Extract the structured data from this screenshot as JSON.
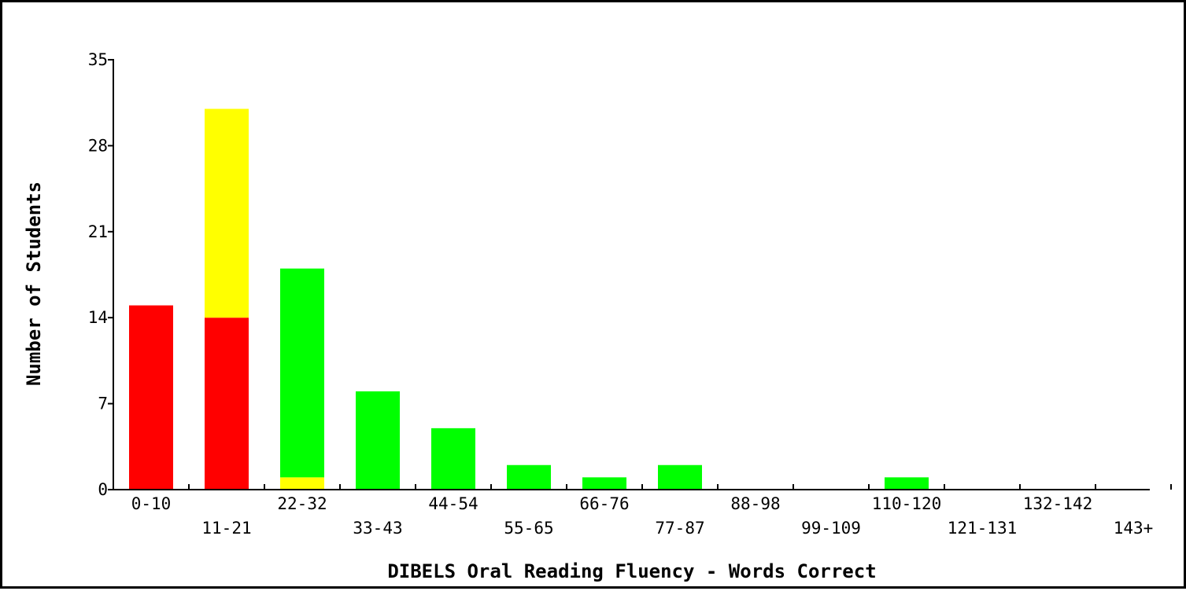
{
  "chart_data": {
    "type": "bar",
    "stacked": true,
    "xlabel": "DIBELS Oral Reading Fluency - Words Correct",
    "ylabel": "Number of Students",
    "ylim": [
      0,
      35
    ],
    "yticks": [
      "0",
      "7",
      "14",
      "21",
      "28",
      "35"
    ],
    "categories": [
      "0-10",
      "11-21",
      "22-32",
      "33-43",
      "44-54",
      "55-65",
      "66-76",
      "77-87",
      "88-98",
      "99-109",
      "110-120",
      "121-131",
      "132-142",
      "143+"
    ],
    "series": [
      {
        "color": "#ff0000",
        "values": [
          15,
          14,
          0,
          0,
          0,
          0,
          0,
          0,
          0,
          0,
          0,
          0,
          0,
          0
        ]
      },
      {
        "color": "#ffff00",
        "values": [
          0,
          17,
          1,
          0,
          0,
          0,
          0,
          0,
          0,
          0,
          0,
          0,
          0,
          0
        ]
      },
      {
        "color": "#00ff00",
        "values": [
          0,
          0,
          17,
          8,
          5,
          2,
          1,
          2,
          0,
          0,
          1,
          0,
          0,
          0
        ]
      }
    ],
    "grid": false,
    "legend": "none"
  }
}
